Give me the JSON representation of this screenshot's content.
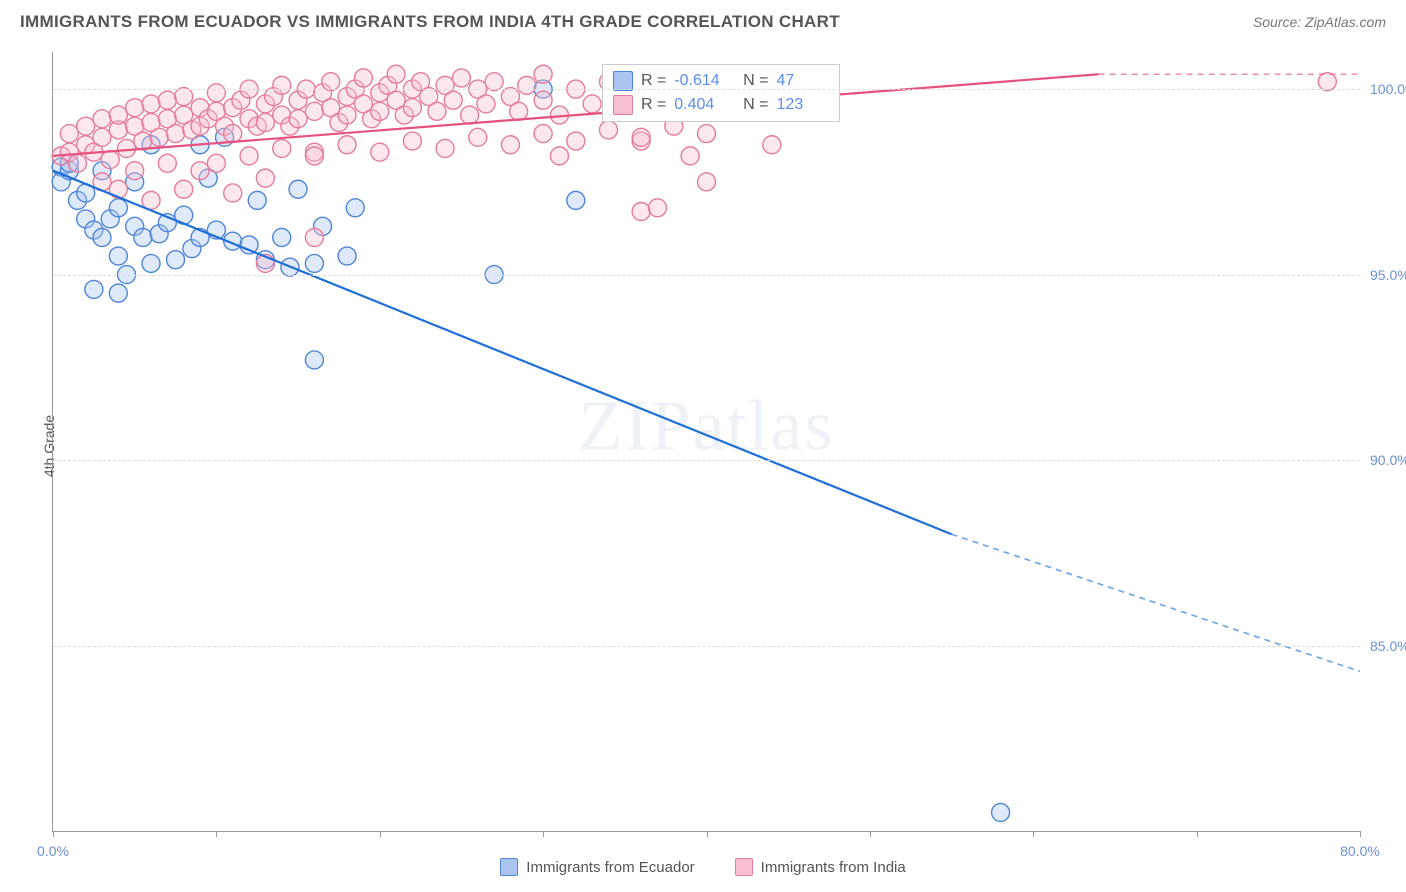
{
  "title": "IMMIGRANTS FROM ECUADOR VS IMMIGRANTS FROM INDIA 4TH GRADE CORRELATION CHART",
  "source": "Source: ZipAtlas.com",
  "watermark": "ZIPatlas",
  "y_axis_label": "4th Grade",
  "chart": {
    "type": "scatter",
    "x_domain": [
      0,
      80
    ],
    "y_domain": [
      80,
      101
    ],
    "x_ticks": [
      0,
      10,
      20,
      30,
      40,
      50,
      60,
      70,
      80
    ],
    "x_tick_labels": {
      "0": "0.0%",
      "80": "80.0%"
    },
    "y_ticks": [
      85,
      90,
      95,
      100
    ],
    "y_tick_labels": {
      "85": "85.0%",
      "90": "90.0%",
      "95": "95.0%",
      "100": "100.0%"
    },
    "grid_color": "#dddddd",
    "axis_color": "#999999",
    "background_color": "#ffffff",
    "tick_label_color": "#6b8fd6",
    "marker_radius": 9,
    "marker_opacity": 0.38,
    "series": [
      {
        "name": "Immigrants from Ecuador",
        "color_fill": "#a9c5ef",
        "color_stroke": "#4f85d8",
        "trend_color": "#1f6fd8",
        "r": -0.614,
        "n": 47,
        "trend": {
          "x1": 0,
          "y1": 97.8,
          "x2": 55,
          "y2": 88.0,
          "x2_dash": 80,
          "y2_dash": 84.3
        },
        "points": [
          [
            0.5,
            97.9
          ],
          [
            0.5,
            97.5
          ],
          [
            1,
            97.8
          ],
          [
            1,
            98.0
          ],
          [
            1.5,
            97.0
          ],
          [
            2,
            96.5
          ],
          [
            2,
            97.2
          ],
          [
            2.5,
            96.2
          ],
          [
            3,
            96.0
          ],
          [
            3,
            97.8
          ],
          [
            3.5,
            96.5
          ],
          [
            4,
            95.5
          ],
          [
            4,
            96.8
          ],
          [
            4.5,
            95.0
          ],
          [
            5,
            96.3
          ],
          [
            5,
            97.5
          ],
          [
            5.5,
            96.0
          ],
          [
            6,
            95.3
          ],
          [
            6,
            98.5
          ],
          [
            6.5,
            96.1
          ],
          [
            7,
            96.4
          ],
          [
            7.5,
            95.4
          ],
          [
            8,
            96.6
          ],
          [
            8.5,
            95.7
          ],
          [
            9,
            98.5
          ],
          [
            9,
            96.0
          ],
          [
            9.5,
            97.6
          ],
          [
            10,
            96.2
          ],
          [
            10.5,
            98.7
          ],
          [
            11,
            95.9
          ],
          [
            12,
            95.8
          ],
          [
            12.5,
            97.0
          ],
          [
            13,
            95.4
          ],
          [
            14,
            96.0
          ],
          [
            14.5,
            95.2
          ],
          [
            15,
            97.3
          ],
          [
            16,
            95.3
          ],
          [
            16.5,
            96.3
          ],
          [
            18,
            95.5
          ],
          [
            18.5,
            96.8
          ],
          [
            16,
            92.7
          ],
          [
            27,
            95.0
          ],
          [
            2.5,
            94.6
          ],
          [
            4,
            94.5
          ],
          [
            30,
            100.0
          ],
          [
            58,
            80.5
          ],
          [
            32,
            97.0
          ]
        ]
      },
      {
        "name": "Immigrants from India",
        "color_fill": "#f7bfd0",
        "color_stroke": "#e47c9d",
        "trend_color": "#e6527e",
        "r": 0.404,
        "n": 123,
        "trend": {
          "x1": 0,
          "y1": 98.2,
          "x2": 64,
          "y2": 100.4,
          "x2_dash": 80,
          "y2_dash": 100.4
        },
        "points": [
          [
            0.5,
            98.2
          ],
          [
            1,
            98.3
          ],
          [
            1,
            98.8
          ],
          [
            1.5,
            98.0
          ],
          [
            2,
            98.5
          ],
          [
            2,
            99.0
          ],
          [
            2.5,
            98.3
          ],
          [
            3,
            98.7
          ],
          [
            3,
            99.2
          ],
          [
            3.5,
            98.1
          ],
          [
            4,
            98.9
          ],
          [
            4,
            99.3
          ],
          [
            4.5,
            98.4
          ],
          [
            5,
            99.0
          ],
          [
            5,
            99.5
          ],
          [
            5.5,
            98.6
          ],
          [
            6,
            99.1
          ],
          [
            6,
            99.6
          ],
          [
            6.5,
            98.7
          ],
          [
            7,
            99.2
          ],
          [
            7,
            99.7
          ],
          [
            7.5,
            98.8
          ],
          [
            8,
            99.3
          ],
          [
            8,
            99.8
          ],
          [
            8.5,
            98.9
          ],
          [
            9,
            99.0
          ],
          [
            9,
            99.5
          ],
          [
            9.5,
            99.2
          ],
          [
            10,
            99.4
          ],
          [
            10,
            99.9
          ],
          [
            10.5,
            99.0
          ],
          [
            11,
            99.5
          ],
          [
            11,
            98.8
          ],
          [
            11.5,
            99.7
          ],
          [
            12,
            99.2
          ],
          [
            12,
            100.0
          ],
          [
            12.5,
            99.0
          ],
          [
            13,
            99.6
          ],
          [
            13,
            99.1
          ],
          [
            13.5,
            99.8
          ],
          [
            14,
            99.3
          ],
          [
            14,
            100.1
          ],
          [
            14.5,
            99.0
          ],
          [
            15,
            99.7
          ],
          [
            15,
            99.2
          ],
          [
            15.5,
            100.0
          ],
          [
            16,
            99.4
          ],
          [
            16,
            98.3
          ],
          [
            16.5,
            99.9
          ],
          [
            17,
            99.5
          ],
          [
            17,
            100.2
          ],
          [
            17.5,
            99.1
          ],
          [
            18,
            99.8
          ],
          [
            18,
            99.3
          ],
          [
            18.5,
            100.0
          ],
          [
            19,
            99.6
          ],
          [
            19,
            100.3
          ],
          [
            19.5,
            99.2
          ],
          [
            20,
            99.9
          ],
          [
            20,
            99.4
          ],
          [
            20.5,
            100.1
          ],
          [
            21,
            99.7
          ],
          [
            21,
            100.4
          ],
          [
            21.5,
            99.3
          ],
          [
            22,
            100.0
          ],
          [
            22,
            99.5
          ],
          [
            22.5,
            100.2
          ],
          [
            23,
            99.8
          ],
          [
            23.5,
            99.4
          ],
          [
            24,
            100.1
          ],
          [
            24.5,
            99.7
          ],
          [
            25,
            100.3
          ],
          [
            25.5,
            99.3
          ],
          [
            26,
            100.0
          ],
          [
            26.5,
            99.6
          ],
          [
            27,
            100.2
          ],
          [
            28,
            99.8
          ],
          [
            28.5,
            99.4
          ],
          [
            29,
            100.1
          ],
          [
            30,
            99.7
          ],
          [
            30,
            100.4
          ],
          [
            31,
            99.3
          ],
          [
            32,
            100.0
          ],
          [
            33,
            99.6
          ],
          [
            34,
            100.2
          ],
          [
            35,
            99.8
          ],
          [
            36,
            98.6
          ],
          [
            37,
            100.1
          ],
          [
            38,
            99.7
          ],
          [
            39,
            98.2
          ],
          [
            40,
            97.5
          ],
          [
            36,
            96.7
          ],
          [
            37,
            96.8
          ],
          [
            3,
            97.5
          ],
          [
            4,
            97.3
          ],
          [
            6,
            97.0
          ],
          [
            8,
            97.3
          ],
          [
            11,
            97.2
          ],
          [
            13,
            97.6
          ],
          [
            13,
            95.3
          ],
          [
            5,
            97.8
          ],
          [
            7,
            98.0
          ],
          [
            9,
            97.8
          ],
          [
            10,
            98.0
          ],
          [
            12,
            98.2
          ],
          [
            14,
            98.4
          ],
          [
            16,
            98.2
          ],
          [
            18,
            98.5
          ],
          [
            20,
            98.3
          ],
          [
            16,
            96.0
          ],
          [
            22,
            98.6
          ],
          [
            24,
            98.4
          ],
          [
            26,
            98.7
          ],
          [
            28,
            98.5
          ],
          [
            30,
            98.8
          ],
          [
            32,
            98.6
          ],
          [
            34,
            98.9
          ],
          [
            36,
            98.7
          ],
          [
            38,
            99.0
          ],
          [
            40,
            98.8
          ],
          [
            44,
            98.5
          ],
          [
            78,
            100.2
          ],
          [
            31,
            98.2
          ]
        ]
      }
    ]
  },
  "stats_box": {
    "top_pct": 1.5,
    "left_pct": 42
  },
  "colors": {
    "title": "#555555",
    "source": "#777777",
    "text": "#555555"
  }
}
